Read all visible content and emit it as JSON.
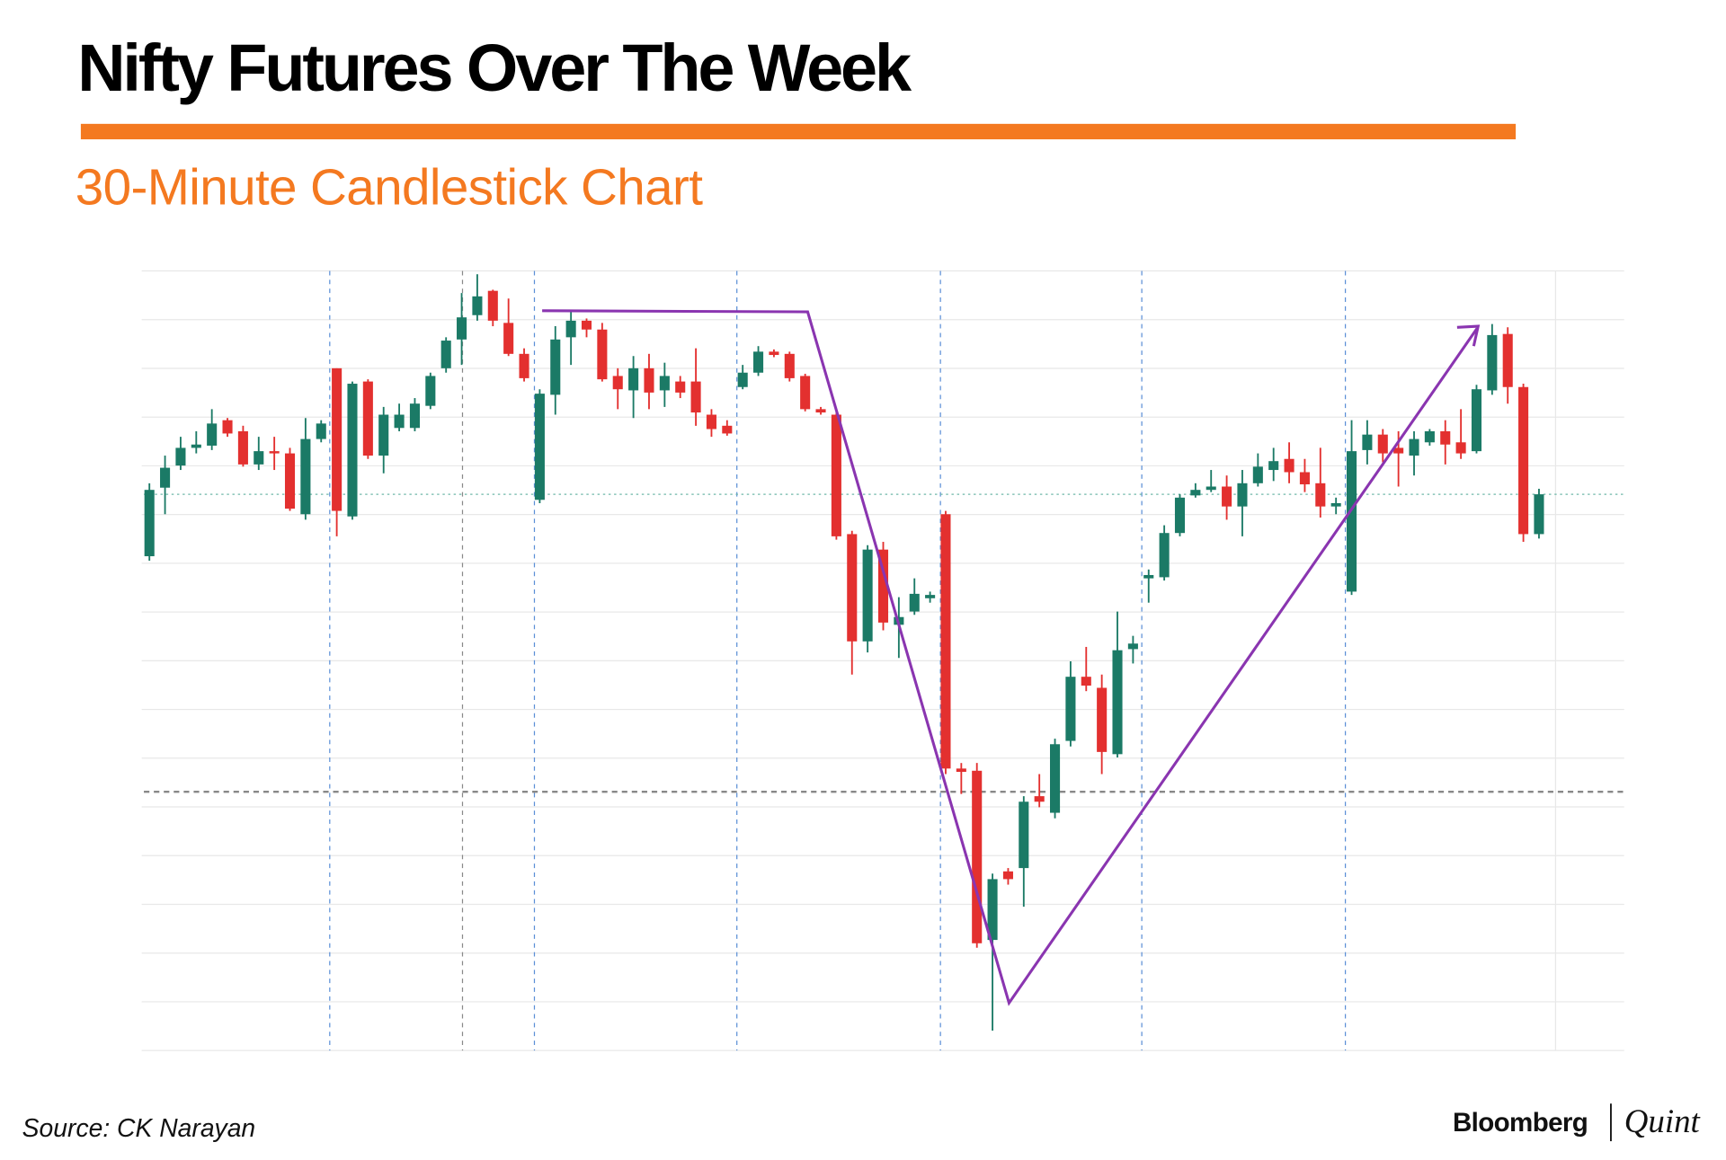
{
  "chart_data": {
    "type": "candlestick",
    "title": "Nifty Futures Over The Week",
    "subtitle": "30-Minute Candlestick Chart",
    "source": "Source: CK Narayan",
    "up_color": "#1b7a66",
    "down_color": "#e3302f",
    "ylim": [
      0,
      705
    ],
    "open": [
      447,
      509,
      529,
      545,
      547,
      570,
      560,
      530,
      542,
      540,
      485,
      553,
      617,
      483,
      605,
      538,
      563,
      563,
      583,
      617,
      643,
      665,
      687,
      658,
      630,
      498,
      593,
      645,
      660,
      652,
      610,
      597,
      617,
      597,
      605,
      605,
      575,
      565,
      600,
      613,
      632,
      630,
      610,
      580,
      575,
      467,
      370,
      453,
      385,
      397,
      409,
      485,
      255,
      253,
      100,
      162,
      165,
      230,
      215,
      280,
      338,
      328,
      268,
      363,
      427,
      428,
      468,
      502,
      507,
      510,
      492,
      513,
      525,
      535,
      523,
      513,
      492,
      415,
      543,
      557,
      545,
      538,
      550,
      560,
      550,
      542,
      597,
      648,
      600,
      467
    ],
    "high": [
      513,
      538,
      555,
      560,
      580,
      572,
      565,
      555,
      555,
      545,
      572,
      570,
      617,
      605,
      607,
      582,
      585,
      590,
      613,
      645,
      685,
      702,
      688,
      680,
      635,
      598,
      655,
      668,
      662,
      658,
      617,
      628,
      630,
      622,
      610,
      635,
      580,
      570,
      620,
      637,
      634,
      632,
      612,
      582,
      580,
      470,
      457,
      460,
      410,
      427,
      415,
      488,
      260,
      260,
      160,
      165,
      230,
      250,
      282,
      352,
      365,
      340,
      397,
      375,
      435,
      475,
      503,
      513,
      525,
      520,
      525,
      540,
      545,
      550,
      535,
      545,
      500,
      570,
      570,
      562,
      560,
      560,
      562,
      570,
      580,
      602,
      657,
      654,
      603,
      508
    ],
    "low": [
      443,
      485,
      525,
      540,
      543,
      555,
      528,
      525,
      525,
      488,
      480,
      550,
      465,
      480,
      535,
      522,
      560,
      560,
      580,
      613,
      620,
      660,
      655,
      628,
      605,
      495,
      575,
      620,
      645,
      605,
      580,
      572,
      580,
      582,
      590,
      565,
      555,
      556,
      598,
      610,
      627,
      605,
      578,
      575,
      462,
      340,
      360,
      380,
      355,
      394,
      405,
      250,
      232,
      93,
      18,
      150,
      130,
      220,
      210,
      275,
      325,
      250,
      265,
      350,
      405,
      425,
      465,
      500,
      505,
      480,
      465,
      510,
      515,
      513,
      505,
      482,
      485,
      412,
      530,
      532,
      510,
      520,
      547,
      530,
      535,
      540,
      593,
      585,
      460,
      463
    ],
    "close": [
      507,
      527,
      545,
      548,
      567,
      558,
      530,
      542,
      540,
      490,
      553,
      567,
      488,
      603,
      538,
      575,
      575,
      585,
      610,
      642,
      663,
      682,
      660,
      630,
      608,
      594,
      643,
      660,
      652,
      607,
      598,
      617,
      595,
      610,
      595,
      577,
      562,
      558,
      613,
      632,
      629,
      608,
      580,
      577,
      465,
      370,
      453,
      387,
      392,
      413,
      412,
      255,
      252,
      97,
      155,
      155,
      225,
      225,
      277,
      338,
      330,
      270,
      362,
      368,
      430,
      468,
      500,
      507,
      510,
      492,
      513,
      528,
      533,
      523,
      512,
      492,
      495,
      542,
      557,
      540,
      540,
      553,
      560,
      548,
      540,
      598,
      647,
      600,
      467,
      503
    ]
  },
  "branding": {
    "name": "Bloomberg",
    "partner": "Quint"
  }
}
